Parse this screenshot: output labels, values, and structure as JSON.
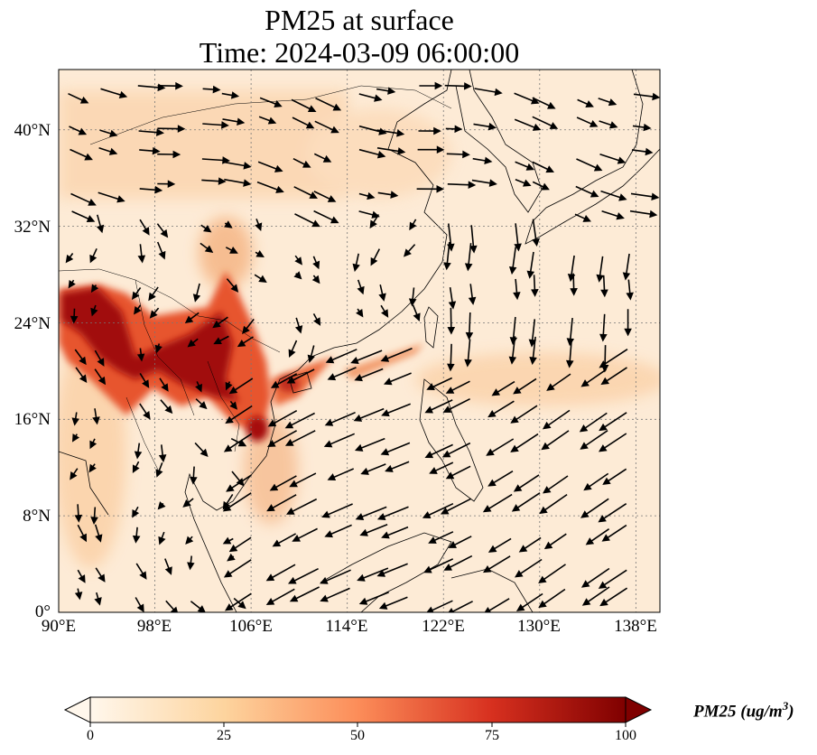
{
  "title": {
    "line1": "PM25 at surface",
    "line2": "Time: 2024-03-09 06:00:00"
  },
  "map": {
    "region": "East and Southeast Asia",
    "lon_range": [
      90,
      140
    ],
    "lat_range": [
      0,
      45
    ],
    "gridlines": "dotted grey",
    "colormap": "OrRd",
    "features": [
      "coastlines",
      "country borders",
      "wind vectors"
    ],
    "lat_labels": [
      "40°N",
      "32°N",
      "24°N",
      "16°N",
      "8°N",
      "0°"
    ],
    "lon_labels": [
      "90°E",
      "98°E",
      "106°E",
      "114°E",
      "122°E",
      "130°E",
      "138°E"
    ]
  },
  "colorbar": {
    "label_main": "PM25 (ug/m",
    "label_sup": "3",
    "label_close": ")",
    "ticks": [
      "0",
      "25",
      "50",
      "75",
      "100"
    ],
    "range": [
      0,
      100
    ],
    "extend": "both",
    "colors": [
      "#fff7ec",
      "#fdd49e",
      "#fc8d59",
      "#d7301f",
      "#7f0000"
    ]
  }
}
